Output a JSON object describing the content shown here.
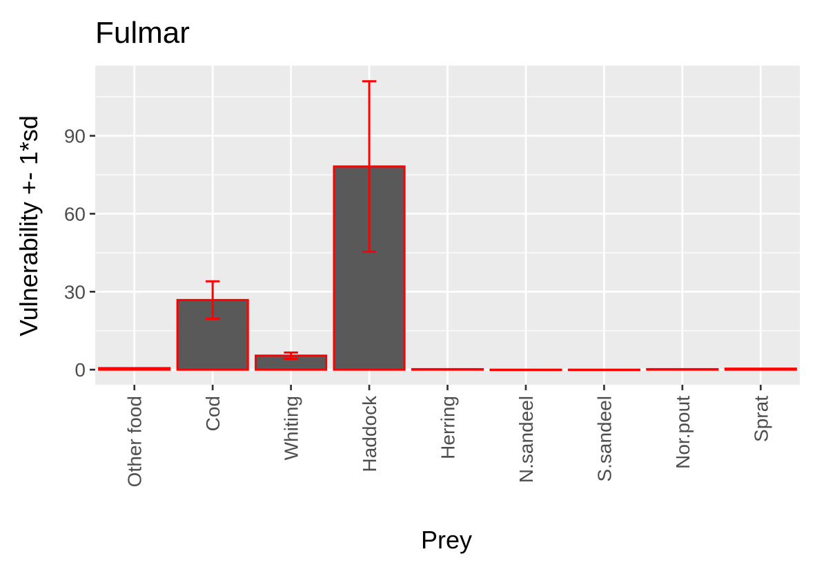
{
  "chart_data": {
    "type": "bar",
    "title": "Fulmar",
    "xlabel": "Prey",
    "ylabel": "Vulnerability +- 1*sd",
    "categories": [
      "Other food",
      "Cod",
      "Whiting",
      "Haddock",
      "Herring",
      "N.sandeel",
      "S.sandeel",
      "Nor.pout",
      "Sprat"
    ],
    "values": [
      0.6,
      26.8,
      5.4,
      78.2,
      0.2,
      0.0,
      0.0,
      0.2,
      0.4
    ],
    "sd": [
      0.0,
      7.2,
      1.2,
      32.8,
      0.0,
      0.0,
      0.0,
      0.0,
      0.0
    ],
    "ylim": [
      -5.8,
      117
    ],
    "yticks": [
      0,
      30,
      60,
      90
    ],
    "grid": true,
    "legend": "none",
    "colors": {
      "bar_fill": "#595959",
      "bar_outline": "#ff0000",
      "errorbar": "#ff0000",
      "panel_background": "#ebebeb",
      "grid": "#ffffff"
    }
  }
}
